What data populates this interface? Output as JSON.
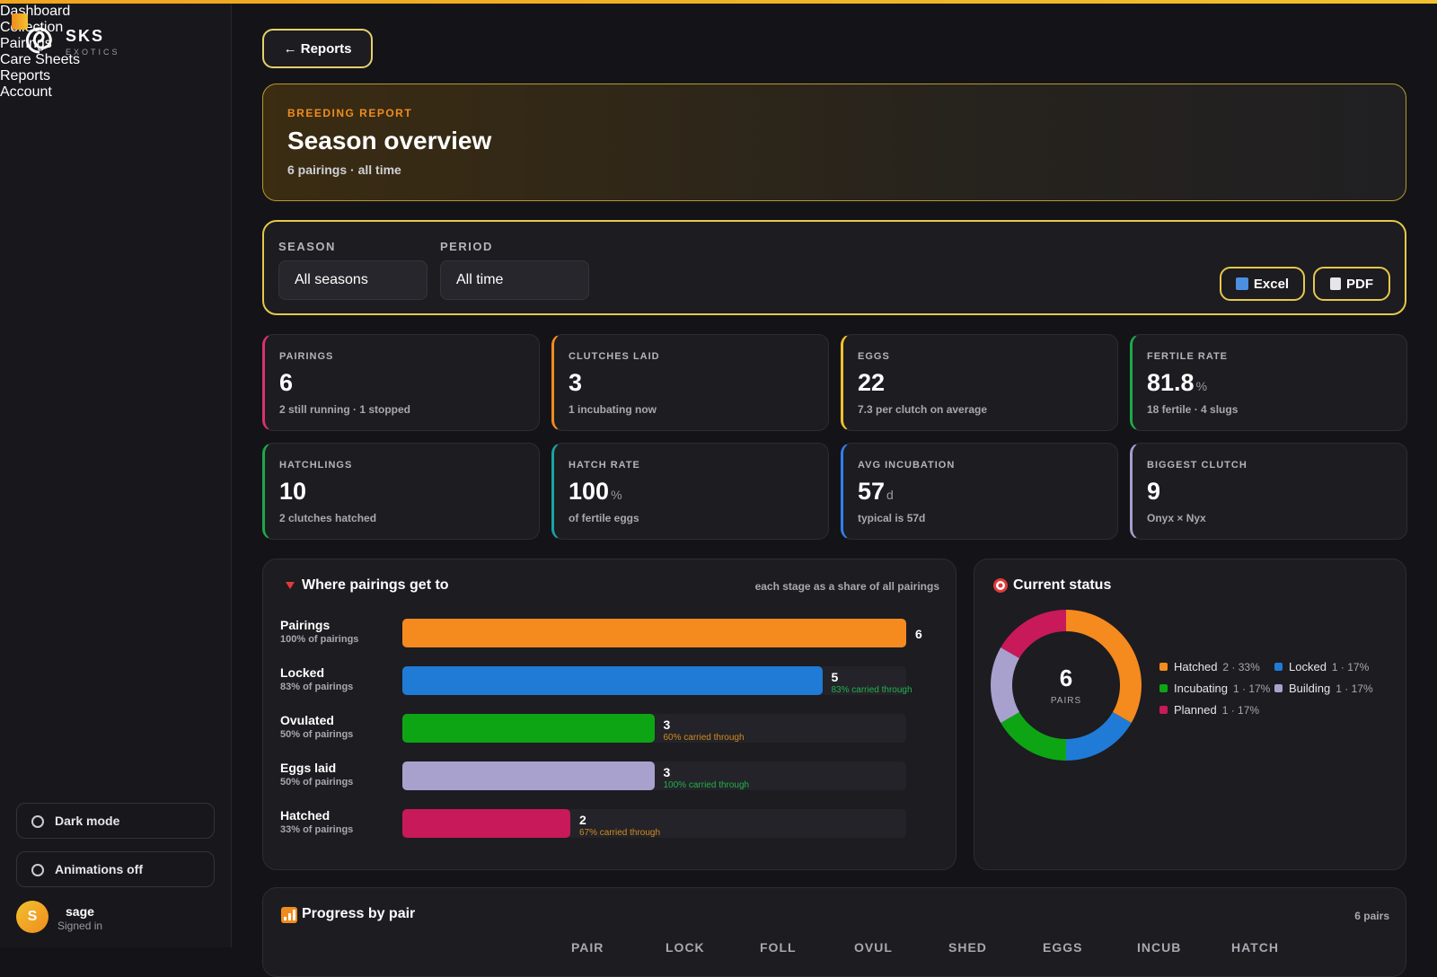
{
  "sidebar": {
    "brand": "SKS",
    "brand_sub": "EXOTICS",
    "nav": [
      "Dashboard",
      "Collection",
      "Pairings",
      "Care Sheets",
      "Reports",
      "Account"
    ],
    "active": 4,
    "toggles": [
      "Dark mode",
      "Animations off"
    ],
    "user": {
      "initial": "S",
      "name": "sage",
      "status": "Signed in"
    }
  },
  "back": "← Reports",
  "hero": {
    "eyebrow": "BREEDING REPORT",
    "title": "Season overview",
    "subtitle": "6 pairings · all time"
  },
  "filters": {
    "season_label": "SEASON",
    "season": "All seasons",
    "period_label": "PERIOD",
    "period": "All time",
    "exports": [
      "Excel",
      "PDF"
    ]
  },
  "stats": [
    {
      "label": "PAIRINGS",
      "value": 6,
      "note": "2 still running · 1 stopped",
      "color": "#d6336c"
    },
    {
      "label": "CLUTCHES LAID",
      "value": 3,
      "note": "1 incubating now",
      "color": "#f08c1e"
    },
    {
      "label": "EGGS",
      "value": 22,
      "note": "7.3 per clutch on average",
      "color": "#f2c12e"
    },
    {
      "label": "FERTILE RATE",
      "value": 81.8,
      "unit": "%",
      "note": "18 fertile · 4 slugs",
      "color": "#1fa84a"
    },
    {
      "label": "HATCHLINGS",
      "value": 10,
      "note": "2 clutches hatched",
      "color": "#1fa84a"
    },
    {
      "label": "HATCH RATE",
      "value": 100,
      "unit": "%",
      "note": "of fertile eggs",
      "color": "#1aa3a3"
    },
    {
      "label": "AVG INCUBATION",
      "value": 57,
      "unit": "d",
      "note": "typical is 57d",
      "color": "#2f80ed"
    },
    {
      "label": "BIGGEST CLUTCH",
      "value": 9,
      "note": "Onyx × Nyx",
      "color": "#a59ecb"
    }
  ],
  "funnel": {
    "title": "Where pairings get to",
    "note": "each stage as a share of all pairings",
    "stages": [
      {
        "name": "Pairings",
        "share": "100% of pairings",
        "count": 6,
        "color": "#f58a1f"
      },
      {
        "name": "Locked",
        "share": "83% of pairings",
        "count": 5,
        "carried": "83% carried through",
        "carried_color": "#22b14c",
        "color": "#1f7bd6"
      },
      {
        "name": "Ovulated",
        "share": "50% of pairings",
        "count": 3,
        "carried": "60% carried through",
        "carried_color": "#d28a1e",
        "color": "#0ea515"
      },
      {
        "name": "Eggs laid",
        "share": "50% of pairings",
        "count": 3,
        "carried": "100% carried through",
        "carried_color": "#22b14c",
        "color": "#a9a1cd"
      },
      {
        "name": "Hatched",
        "share": "33% of pairings",
        "count": 2,
        "carried": "67% carried through",
        "carried_color": "#d28a1e",
        "color": "#c8195a"
      }
    ]
  },
  "status": {
    "title": "Current status",
    "total": 6,
    "total_label": "PAIRS",
    "segments": [
      {
        "name": "Hatched",
        "value": 2,
        "label": "2 · 33%",
        "color": "#f58a1f"
      },
      {
        "name": "Locked",
        "value": 1,
        "label": "1 · 17%",
        "color": "#1f7bd6"
      },
      {
        "name": "Incubating",
        "value": 1,
        "label": "1 · 17%",
        "color": "#0ea515"
      },
      {
        "name": "Building",
        "value": 1,
        "label": "1 · 17%",
        "color": "#a9a1cd"
      },
      {
        "name": "Planned",
        "value": 1,
        "label": "1 · 17%",
        "color": "#c8195a"
      }
    ]
  },
  "progress": {
    "title": "Progress by pair",
    "note": "6 pairs",
    "columns": [
      "PAIR",
      "LOCK",
      "FOLL",
      "OVUL",
      "SHED",
      "EGGS",
      "INCUB",
      "HATCH"
    ]
  }
}
